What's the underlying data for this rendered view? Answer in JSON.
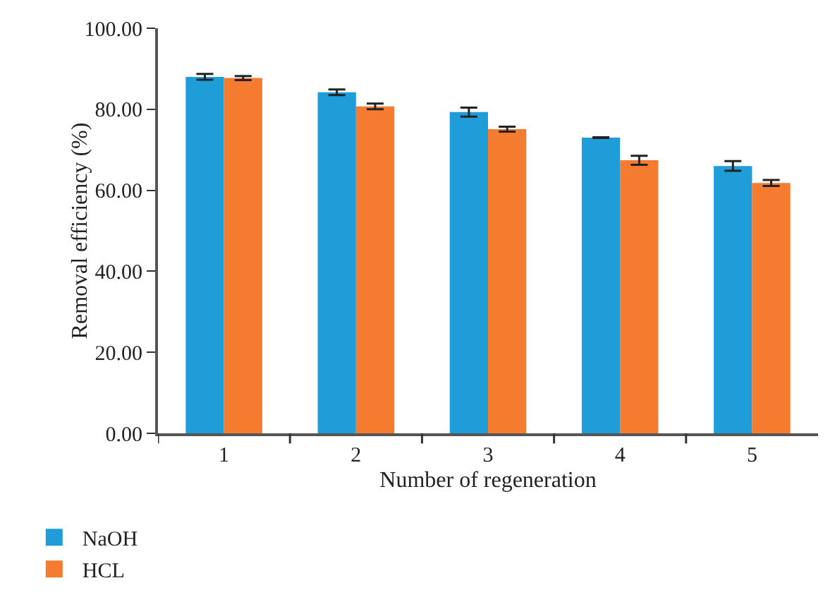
{
  "chart_data": {
    "type": "bar",
    "xlabel": "Number of regeneration",
    "ylabel": "Removal efficiency (%)",
    "categories": [
      "1",
      "2",
      "3",
      "4",
      "5"
    ],
    "series": [
      {
        "name": "NaOH",
        "color": "#1e9dd8",
        "values": [
          88.0,
          84.2,
          79.3,
          73.0,
          66.0
        ],
        "errors": [
          0.7,
          0.7,
          1.1,
          0.1,
          1.2
        ]
      },
      {
        "name": "HCL",
        "color": "#f47b2f",
        "values": [
          87.7,
          80.7,
          75.1,
          67.4,
          61.8
        ],
        "errors": [
          0.5,
          0.7,
          0.6,
          1.1,
          0.75
        ]
      }
    ],
    "ylim": [
      0,
      100
    ],
    "yticks": [
      {
        "value": 0,
        "label": "0.00"
      },
      {
        "value": 20,
        "label": "20.00"
      },
      {
        "value": 40,
        "label": "40.00"
      },
      {
        "value": 60,
        "label": "60.00"
      },
      {
        "value": 80,
        "label": "80.00"
      },
      {
        "value": 100,
        "label": "100.00"
      }
    ],
    "grid": false,
    "legend": "bottom left"
  }
}
